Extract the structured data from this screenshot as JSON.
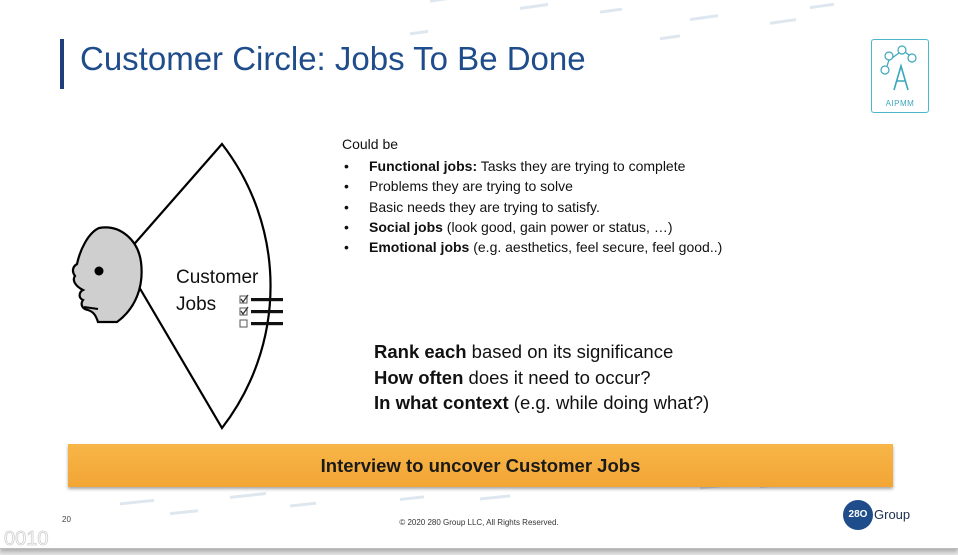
{
  "slide": {
    "title": "Customer Circle: Jobs To Be Done",
    "logo_text": "AIPMM",
    "intro": "Could be",
    "bullets": [
      {
        "bold": "Functional jobs:",
        "text": " Tasks they are trying to complete"
      },
      {
        "bold": "",
        "text": "Problems they are trying to solve"
      },
      {
        "bold": "",
        "text": "Basic needs they are trying to satisfy."
      },
      {
        "bold": "Social jobs",
        "text": " (look good, gain power or status, …)"
      },
      {
        "bold": "Emotional jobs",
        "text": " (e.g. aesthetics, feel secure, feel good..)"
      }
    ],
    "diagram": {
      "label_line1": "Customer",
      "label_line2": "Jobs"
    },
    "rank_lines": [
      {
        "bold": "Rank each",
        "text": " based on its significance"
      },
      {
        "bold": "How often",
        "text": " does it need to occur?"
      },
      {
        "bold": "In what context",
        "text": " (e.g. while doing what?)"
      }
    ],
    "banner": "Interview to uncover Customer Jobs",
    "page_number": "20",
    "copyright": "© 2020 280 Group LLC, All Rights Reserved.",
    "brand": {
      "badge": "28O",
      "name": "Group"
    },
    "bullet_glyph": "•",
    "colors": {
      "title": "#1f4d8c",
      "banner": "#f5ae3e",
      "logo": "#3aa7bb"
    }
  }
}
